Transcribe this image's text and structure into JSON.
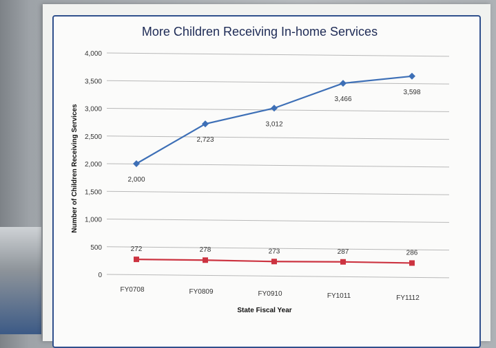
{
  "chart_data": {
    "type": "line",
    "title": "More Children Receiving In-home Services",
    "xlabel": "State Fiscal Year",
    "ylabel": "Number of Children Receiving Services",
    "categories": [
      "FY0708",
      "FY0809",
      "FY0910",
      "FY1011",
      "FY1112"
    ],
    "series": [
      {
        "values": [
          2000,
          2723,
          3012,
          3466,
          3598
        ],
        "color": "#3d6fb6",
        "marker": "diamond"
      },
      {
        "values": [
          272,
          278,
          273,
          287,
          286
        ],
        "color": "#cc3340",
        "marker": "square"
      }
    ],
    "data_labels": [
      [
        "2,000",
        "2,723",
        "3,012",
        "3,466",
        "3,598"
      ],
      [
        "272",
        "278",
        "273",
        "287",
        "286"
      ]
    ],
    "ylim": [
      0,
      4000
    ],
    "yticks": [
      "0",
      "500",
      "1,000",
      "1,500",
      "2,000",
      "2,500",
      "3,000",
      "3,500",
      "4,000"
    ],
    "grid": true,
    "legend": "none"
  }
}
